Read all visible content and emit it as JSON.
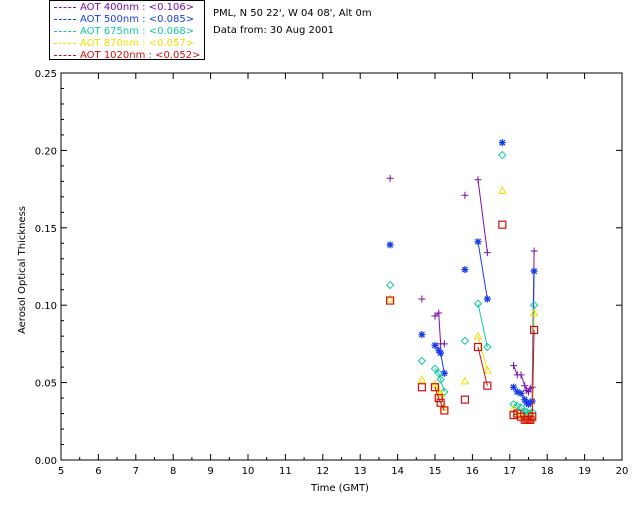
{
  "header": {
    "site_line": "PML, N 50 22', W 04 08', Alt 0m",
    "date_line": "Data from: 30 Aug 2001"
  },
  "legend": [
    {
      "label": "AOT  400nm : <0.106>",
      "color": "#7b0ea8"
    },
    {
      "label": "AOT  500nm : <0.085>",
      "color": "#1a3de8"
    },
    {
      "label": "AOT  675nm : <0.068>",
      "color": "#10c8a0"
    },
    {
      "label": "AOT  870nm : <0.057>",
      "color": "#f0e000"
    },
    {
      "label": "AOT 1020nm : <0.052>",
      "color": "#d01010"
    }
  ],
  "chart_data": {
    "type": "scatter",
    "xlabel": "Time (GMT)",
    "ylabel": "Aerosol Optical Thickness",
    "xlim": [
      5,
      20
    ],
    "ylim": [
      0,
      0.25
    ],
    "xticks": [
      "5",
      "6",
      "7",
      "8",
      "9",
      "10",
      "11",
      "12",
      "13",
      "14",
      "15",
      "16",
      "17",
      "18",
      "19",
      "20"
    ],
    "yticks": [
      "0.00",
      "0.05",
      "0.10",
      "0.15",
      "0.20",
      "0.25"
    ],
    "segments": [
      [
        0
      ],
      [
        1
      ],
      [
        2,
        3,
        4,
        5
      ],
      [
        6
      ],
      [
        7,
        8
      ],
      [
        9
      ],
      [
        10,
        11
      ],
      [
        12,
        13,
        14,
        15,
        16,
        17,
        18
      ]
    ],
    "x": [
      13.8,
      14.65,
      15.0,
      15.1,
      15.15,
      15.25,
      15.8,
      16.15,
      16.4,
      16.8,
      17.1,
      17.2,
      17.3,
      17.4,
      17.45,
      17.5,
      17.55,
      17.6,
      17.65
    ],
    "series": [
      {
        "name": "AOT  400nm",
        "marker": "plus",
        "color": "#7b0ea8",
        "values": [
          0.182,
          0.104,
          0.093,
          0.095,
          0.075,
          0.075,
          0.171,
          0.181,
          0.134,
          null,
          0.061,
          0.055,
          0.055,
          0.048,
          0.045,
          0.044,
          0.046,
          0.047,
          0.135
        ]
      },
      {
        "name": "AOT  500nm",
        "marker": "asterisk",
        "color": "#1a3de8",
        "values": [
          0.139,
          0.081,
          0.074,
          0.071,
          0.069,
          0.056,
          0.123,
          0.141,
          0.104,
          0.205,
          0.047,
          0.044,
          0.043,
          0.039,
          0.037,
          0.036,
          0.037,
          0.038,
          0.122
        ]
      },
      {
        "name": "AOT  675nm",
        "marker": "diamond",
        "color": "#10c8a0",
        "values": [
          0.113,
          0.064,
          0.059,
          0.056,
          0.052,
          0.044,
          0.077,
          0.101,
          0.073,
          0.197,
          0.036,
          0.035,
          0.034,
          0.031,
          0.031,
          0.03,
          0.03,
          0.031,
          0.1
        ]
      },
      {
        "name": "AOT  870nm",
        "marker": "triangle",
        "color": "#f0e000",
        "values": [
          0.104,
          0.052,
          0.049,
          0.044,
          0.043,
          0.034,
          0.051,
          0.08,
          0.058,
          0.174,
          0.033,
          0.03,
          0.029,
          0.027,
          0.027,
          0.026,
          0.026,
          0.028,
          0.095
        ]
      },
      {
        "name": "AOT 1020nm",
        "marker": "square",
        "color": "#d01010",
        "values": [
          0.103,
          0.047,
          0.047,
          0.04,
          0.037,
          0.032,
          0.039,
          0.073,
          0.048,
          0.152,
          0.029,
          0.03,
          0.028,
          0.026,
          0.026,
          0.026,
          0.026,
          0.028,
          0.084
        ]
      }
    ]
  }
}
